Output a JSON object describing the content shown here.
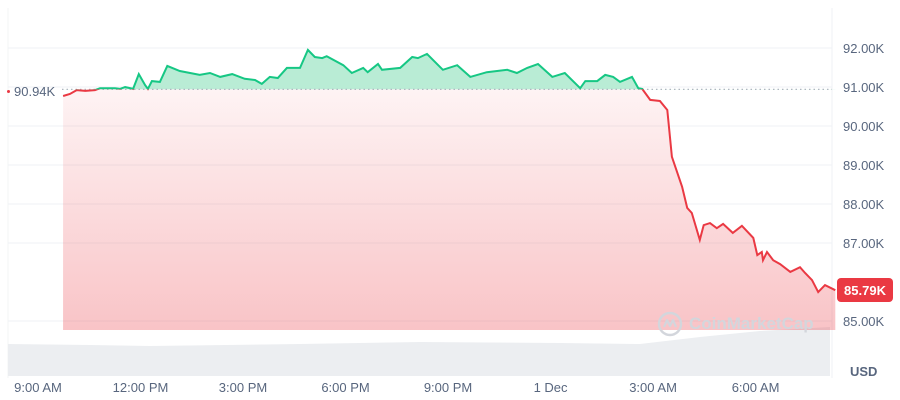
{
  "chart_data": {
    "type": "area",
    "currency": "USD",
    "baseline_value": 90.94,
    "baseline_label": "90.94K",
    "current_value": 85.79,
    "current_label": "85.79K",
    "ylim": [
      84.6,
      92.3
    ],
    "grid": true,
    "y_ticks": [
      {
        "value": 92,
        "label": "92.00K"
      },
      {
        "value": 91,
        "label": "91.00K"
      },
      {
        "value": 90,
        "label": "90.00K"
      },
      {
        "value": 89,
        "label": "89.00K"
      },
      {
        "value": 88,
        "label": "88.00K"
      },
      {
        "value": 87,
        "label": "87.00K"
      },
      {
        "value": 85,
        "label": "85.00K"
      }
    ],
    "x_ticks": [
      {
        "time": "30 Nov 09:00",
        "label": "9:00 AM"
      },
      {
        "time": "30 Nov 12:00",
        "label": "12:00 PM"
      },
      {
        "time": "30 Nov 15:00",
        "label": "3:00 PM"
      },
      {
        "time": "30 Nov 18:00",
        "label": "6:00 PM"
      },
      {
        "time": "30 Nov 21:00",
        "label": "9:00 PM"
      },
      {
        "time": "1 Dec 00:00",
        "label": "1 Dec"
      },
      {
        "time": "1 Dec 03:00",
        "label": "3:00 AM"
      },
      {
        "time": "1 Dec 06:00",
        "label": "6:00 AM"
      }
    ],
    "colors": {
      "up": "#16c784",
      "up_fill": "#b9ecd5",
      "down": "#ea3943",
      "grid": "#eff2f5",
      "volume": "#eceef1"
    },
    "series": [
      {
        "x": [
          "30 Nov 09:44",
          "30 Nov 09:56",
          "30 Nov 10:08",
          "30 Nov 10:23",
          "30 Nov 10:40",
          "30 Nov 10:49",
          "30 Nov 11:15",
          "30 Nov 11:24",
          "30 Nov 11:33",
          "30 Nov 11:47",
          "30 Nov 11:57",
          "30 Nov 12:08",
          "30 Nov 12:13",
          "30 Nov 12:20",
          "30 Nov 12:34",
          "30 Nov 12:47",
          "30 Nov 13:09",
          "30 Nov 13:27",
          "30 Nov 13:44",
          "30 Nov 14:02",
          "30 Nov 14:20",
          "30 Nov 14:41",
          "30 Nov 15:03",
          "30 Nov 15:21",
          "30 Nov 15:33",
          "30 Nov 15:47",
          "30 Nov 16:01",
          "30 Nov 16:17",
          "30 Nov 16:40",
          "30 Nov 16:54",
          "30 Nov 17:06",
          "30 Nov 17:19",
          "30 Nov 17:27",
          "30 Nov 17:56",
          "30 Nov 18:11",
          "30 Nov 18:31",
          "30 Nov 18:39",
          "30 Nov 18:57",
          "30 Nov 19:04",
          "30 Nov 19:36",
          "30 Nov 19:57",
          "30 Nov 20:07",
          "30 Nov 20:23",
          "30 Nov 20:46",
          "30 Nov 20:51",
          "30 Nov 21:16",
          "30 Nov 21:39",
          "30 Nov 22:08",
          "30 Nov 22:44",
          "30 Nov 23:01",
          "30 Nov 23:19",
          "30 Nov 23:38",
          "1 Dec 00:03",
          "1 Dec 00:25",
          "1 Dec 00:52",
          "1 Dec 01:01",
          "1 Dec 01:22",
          "1 Dec 01:36",
          "1 Dec 01:50",
          "1 Dec 02:02",
          "1 Dec 02:23",
          "1 Dec 02:34",
          "1 Dec 02:41",
          "1 Dec 02:55",
          "1 Dec 03:12",
          "1 Dec 03:25",
          "1 Dec 03:33",
          "1 Dec 03:51",
          "1 Dec 04:00",
          "1 Dec 04:08",
          "1 Dec 04:22",
          "1 Dec 04:29",
          "1 Dec 04:40",
          "1 Dec 04:52",
          "1 Dec 05:03",
          "1 Dec 05:20",
          "1 Dec 05:36",
          "1 Dec 05:56",
          "1 Dec 06:03",
          "1 Dec 06:11",
          "1 Dec 06:13",
          "1 Dec 06:20",
          "1 Dec 06:31",
          "1 Dec 06:43",
          "1 Dec 07:01",
          "1 Dec 07:18",
          "1 Dec 07:27",
          "1 Dec 07:39",
          "1 Dec 07:50",
          "1 Dec 08:02",
          "1 Dec 08:20"
        ],
        "values": [
          90.77,
          90.82,
          90.92,
          90.9,
          90.92,
          90.97,
          90.97,
          90.95,
          91.0,
          90.95,
          91.33,
          91.05,
          90.95,
          91.15,
          91.13,
          91.54,
          91.41,
          91.36,
          91.31,
          91.36,
          91.26,
          91.33,
          91.21,
          91.18,
          91.08,
          91.26,
          91.23,
          91.49,
          91.49,
          91.95,
          91.77,
          91.74,
          91.79,
          91.56,
          91.36,
          91.49,
          91.38,
          91.59,
          91.44,
          91.49,
          91.77,
          91.74,
          91.85,
          91.51,
          91.44,
          91.56,
          91.26,
          91.38,
          91.44,
          91.36,
          91.49,
          91.59,
          91.26,
          91.36,
          90.97,
          91.15,
          91.15,
          91.31,
          91.26,
          91.13,
          91.26,
          90.97,
          90.95,
          90.67,
          90.64,
          90.41,
          89.21,
          88.44,
          87.9,
          87.77,
          87.08,
          87.46,
          87.51,
          87.38,
          87.49,
          87.26,
          87.44,
          87.13,
          86.69,
          86.77,
          86.56,
          86.77,
          86.56,
          86.46,
          86.26,
          86.38,
          86.23,
          86.05,
          85.74,
          85.92,
          85.79
        ]
      }
    ]
  },
  "watermark": "CoinMarketCap"
}
